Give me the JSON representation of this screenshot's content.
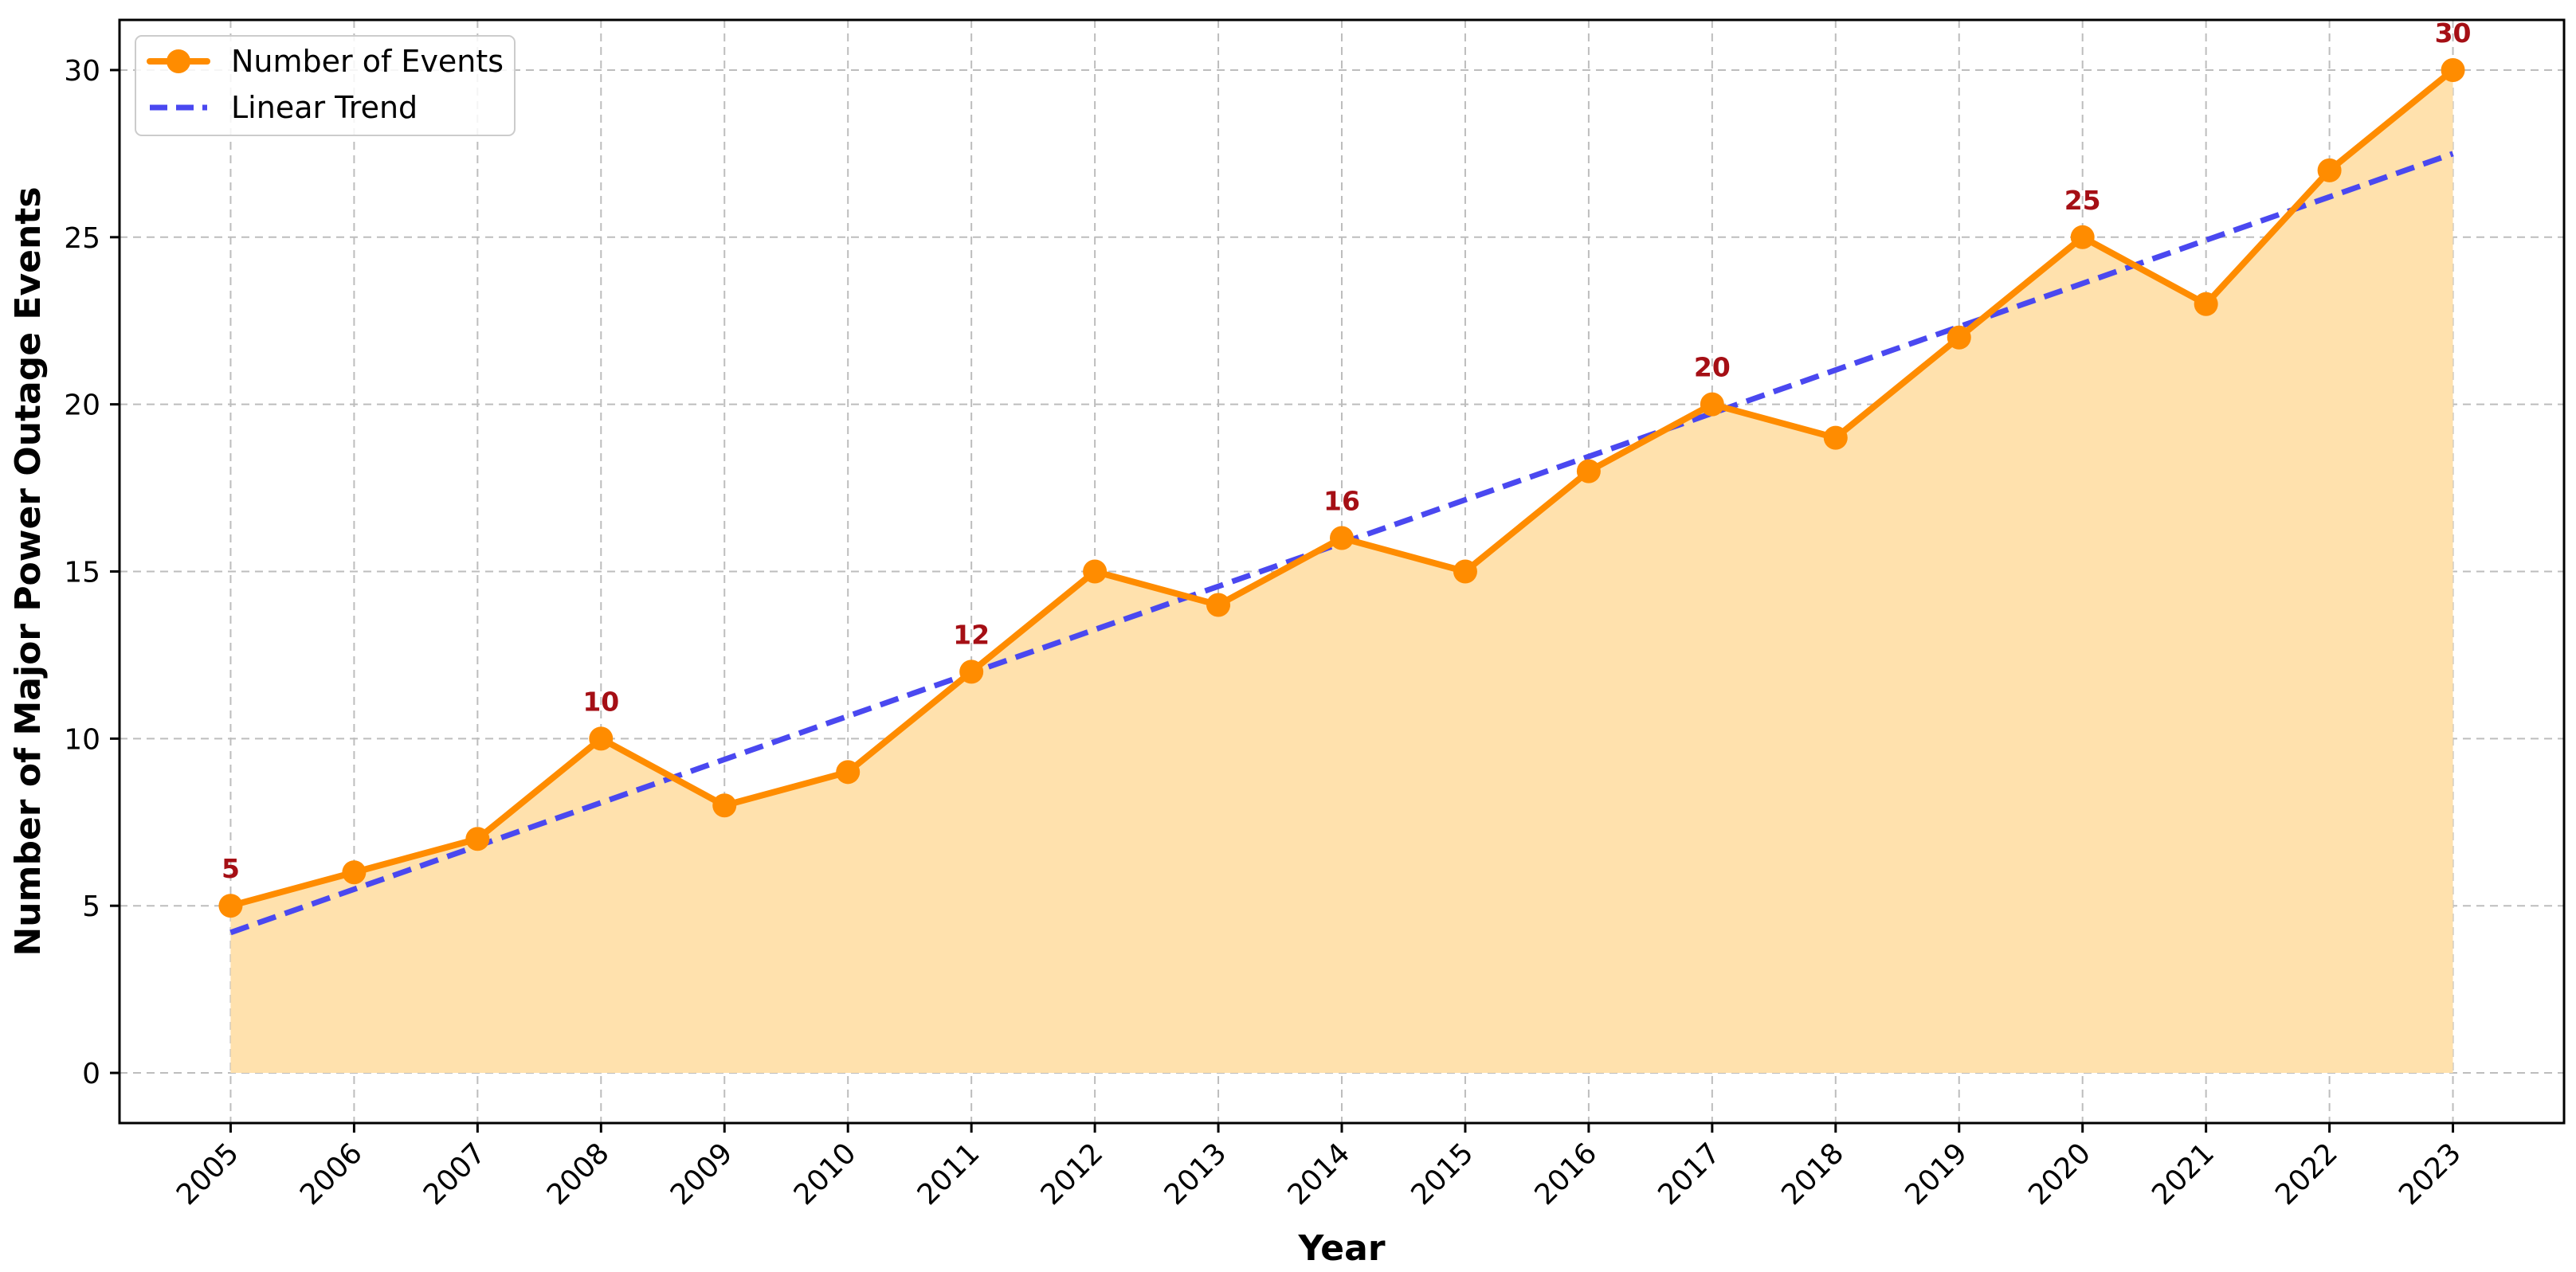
{
  "chart_data": {
    "type": "line",
    "title": "",
    "xlabel": "Year",
    "ylabel": "Number of Major Power Outage Events",
    "x": [
      2005,
      2006,
      2007,
      2008,
      2009,
      2010,
      2011,
      2012,
      2013,
      2014,
      2015,
      2016,
      2017,
      2018,
      2019,
      2020,
      2021,
      2022,
      2023
    ],
    "xticks": [
      "2005",
      "2006",
      "2007",
      "2008",
      "2009",
      "2010",
      "2011",
      "2012",
      "2013",
      "2014",
      "2015",
      "2016",
      "2017",
      "2018",
      "2019",
      "2020",
      "2021",
      "2022",
      "2023"
    ],
    "yticks": [
      0,
      5,
      10,
      15,
      20,
      25,
      30
    ],
    "ylim": [
      -1.5,
      31.5
    ],
    "xlim": [
      2004.1,
      2023.9
    ],
    "grid": true,
    "legend_position": "top-left",
    "series": [
      {
        "name": "Number of Events",
        "kind": "line-with-markers-and-area-fill",
        "color": "#ff8c00",
        "fill_color": "#ffe1ad",
        "values": [
          5,
          6,
          7,
          10,
          8,
          9,
          12,
          15,
          14,
          16,
          15,
          18,
          20,
          19,
          22,
          25,
          23,
          27,
          30
        ]
      },
      {
        "name": "Linear Trend",
        "kind": "dashed-line",
        "color": "#4a48f0",
        "start": {
          "x": 2005,
          "y": 4.2
        },
        "end": {
          "x": 2023,
          "y": 27.5
        }
      }
    ],
    "annotations": [
      {
        "x": 2005,
        "text": "5",
        "value": 5
      },
      {
        "x": 2008,
        "text": "10",
        "value": 10
      },
      {
        "x": 2011,
        "text": "12",
        "value": 12
      },
      {
        "x": 2014,
        "text": "16",
        "value": 16
      },
      {
        "x": 2017,
        "text": "20",
        "value": 20
      },
      {
        "x": 2020,
        "text": "25",
        "value": 25
      },
      {
        "x": 2023,
        "text": "30",
        "value": 30
      }
    ]
  }
}
